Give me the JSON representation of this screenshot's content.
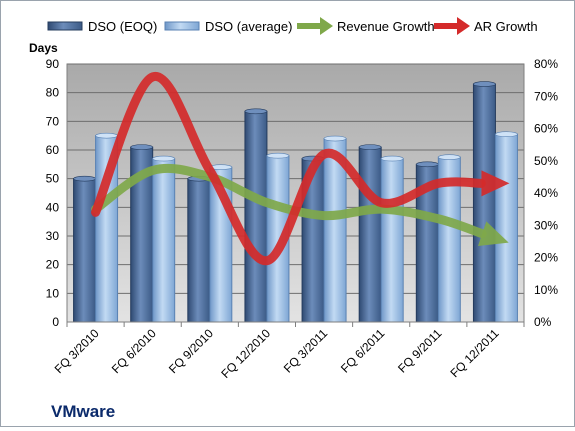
{
  "chart_data": {
    "type": "bar",
    "company": "VMware",
    "y_left_label": "Days",
    "categories": [
      "FQ 3/2010",
      "FQ 6/2010",
      "FQ 9/2010",
      "FQ 12/2010",
      "FQ 3/2011",
      "FQ 6/2011",
      "FQ 9/2011",
      "FQ 12/2011"
    ],
    "y_left": {
      "min": 0,
      "max": 90,
      "step": 10
    },
    "y_right": {
      "min": 0,
      "max": 80,
      "step": 10,
      "format": "percent"
    },
    "series": [
      {
        "name": "DSO (EOQ)",
        "kind": "bar",
        "axis": "left",
        "color": "#4f6f9c",
        "values": [
          50,
          61,
          50,
          73.5,
          57,
          61,
          55,
          83
        ]
      },
      {
        "name": "DSO (average)",
        "kind": "bar",
        "axis": "left",
        "color": "#8fb4de",
        "values": [
          65,
          57,
          54,
          58,
          64,
          57,
          57.5,
          65.5
        ]
      },
      {
        "name": "Revenue Growth",
        "kind": "line-arrow",
        "axis": "right",
        "color": "#7fa84a",
        "values": [
          35,
          47,
          45,
          37,
          33,
          35,
          32,
          26
        ]
      },
      {
        "name": "AR Growth",
        "kind": "line-arrow",
        "axis": "right",
        "color": "#d42a2a",
        "values": [
          34,
          76,
          47,
          19,
          52,
          37,
          43,
          43
        ]
      }
    ],
    "legend_position": "top",
    "grid": true
  }
}
